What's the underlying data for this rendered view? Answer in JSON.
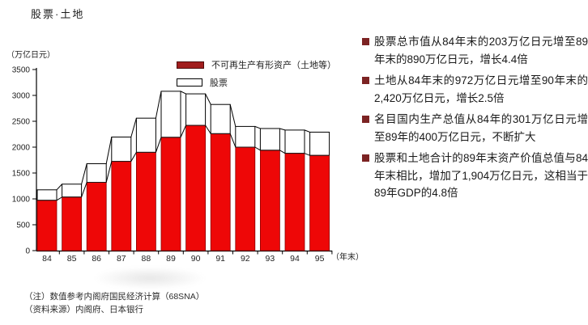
{
  "page": {
    "title": "股票·土地"
  },
  "chart": {
    "unit_label": "（万亿日元）",
    "x_suffix_label": "（年末）",
    "legend": [
      {
        "label": "不可再生产有形资产（土地等）",
        "swatch": "solid-dark-red"
      },
      {
        "label": "股票",
        "swatch": "white-outline"
      }
    ]
  },
  "chart_data": {
    "type": "bar",
    "stacked": true,
    "title": "股票·土地",
    "categories": [
      "84",
      "85",
      "86",
      "87",
      "88",
      "89",
      "90",
      "91",
      "92",
      "93",
      "94",
      "95"
    ],
    "series": [
      {
        "name": "不可再生产有形资产（土地等）",
        "color": "#ee0707",
        "values": [
          972,
          1035,
          1320,
          1725,
          1900,
          2190,
          2420,
          2260,
          2000,
          1940,
          1880,
          1840
        ]
      },
      {
        "name": "股票",
        "color": "#ffffff",
        "values": [
          203,
          250,
          360,
          470,
          660,
          890,
          610,
          565,
          400,
          420,
          450,
          450
        ]
      }
    ],
    "ylabel": "（万亿日元）",
    "xlabel": "（年末）",
    "ylim": [
      0,
      3500
    ],
    "ytick_step": 500,
    "grid": false,
    "legend_position": "top-inside",
    "connector_lines": true
  },
  "bullets": [
    "股票总市值从84年末的203万亿日元增至89年末的890万亿日元，增长4.4倍",
    "土地从84年末的972万亿日元增至90年末的2,420万亿日元，增长2.5倍",
    "名目国内生产总值从84年的301万亿日元增至89年的400万亿日元，不断扩大",
    "股票和土地合计的89年末资产价值总值与84年末相比，增加了1,904万亿日元，这相当于89年GDP的4.8倍"
  ],
  "footnotes": [
    "（注）数值参考内阁府国民经济计算（68SNA）",
    "（资料来源）内阁府、日本银行"
  ],
  "colors": {
    "bar_red": "#ee0707",
    "bar_red_stroke": "#8c0000",
    "legend_dark_red": "#a11d1d",
    "bullet_red": "#7c2323",
    "axis_black": "#000000"
  }
}
